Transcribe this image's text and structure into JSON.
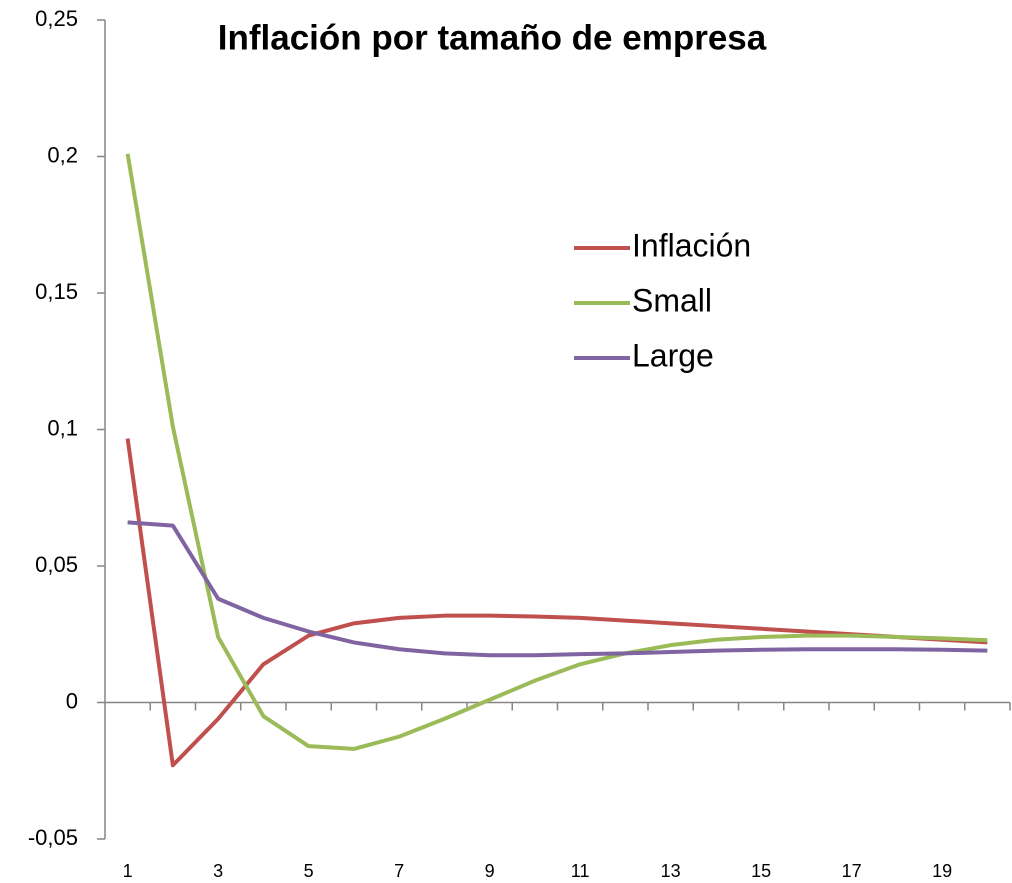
{
  "chart_data": {
    "type": "line",
    "title": "Inflación por tamaño de empresa",
    "categories": [
      1,
      null,
      3,
      null,
      5,
      null,
      7,
      null,
      9,
      null,
      11,
      null,
      13,
      null,
      15,
      null,
      17,
      null,
      19,
      null
    ],
    "series": [
      {
        "name": "Inflación",
        "color": "#c0504d",
        "values": [
          0.0967,
          -0.023,
          -0.006,
          0.014,
          0.0245,
          0.029,
          0.031,
          0.0318,
          0.0318,
          0.0315,
          0.031,
          0.03,
          0.029,
          0.028,
          0.027,
          0.026,
          0.025,
          0.024,
          0.023,
          0.022
        ]
      },
      {
        "name": "Small",
        "color": "#9bbb59",
        "values": [
          0.201,
          0.101,
          0.024,
          -0.005,
          -0.016,
          -0.017,
          -0.0125,
          -0.006,
          0.001,
          0.008,
          0.014,
          0.018,
          0.021,
          0.023,
          0.024,
          0.0245,
          0.0245,
          0.024,
          0.0235,
          0.0228
        ]
      },
      {
        "name": "Large",
        "color": "#8064a2",
        "values": [
          0.066,
          0.0648,
          0.038,
          0.031,
          0.026,
          0.022,
          0.0195,
          0.018,
          0.0173,
          0.0173,
          0.0177,
          0.018,
          0.0185,
          0.019,
          0.0193,
          0.0195,
          0.0195,
          0.0195,
          0.0193,
          0.019
        ]
      }
    ],
    "ylim": [
      -0.05,
      0.25
    ],
    "yticks": [
      {
        "value": -0.05,
        "label": "-0,05"
      },
      0,
      {
        "value": 0.05,
        "label": "0,05"
      },
      {
        "value": 0.1,
        "label": "0,1"
      },
      {
        "value": 0.15,
        "label": "0,15"
      },
      {
        "value": 0.2,
        "label": "0,2"
      },
      {
        "value": 0.25,
        "label": "0,25"
      }
    ]
  }
}
